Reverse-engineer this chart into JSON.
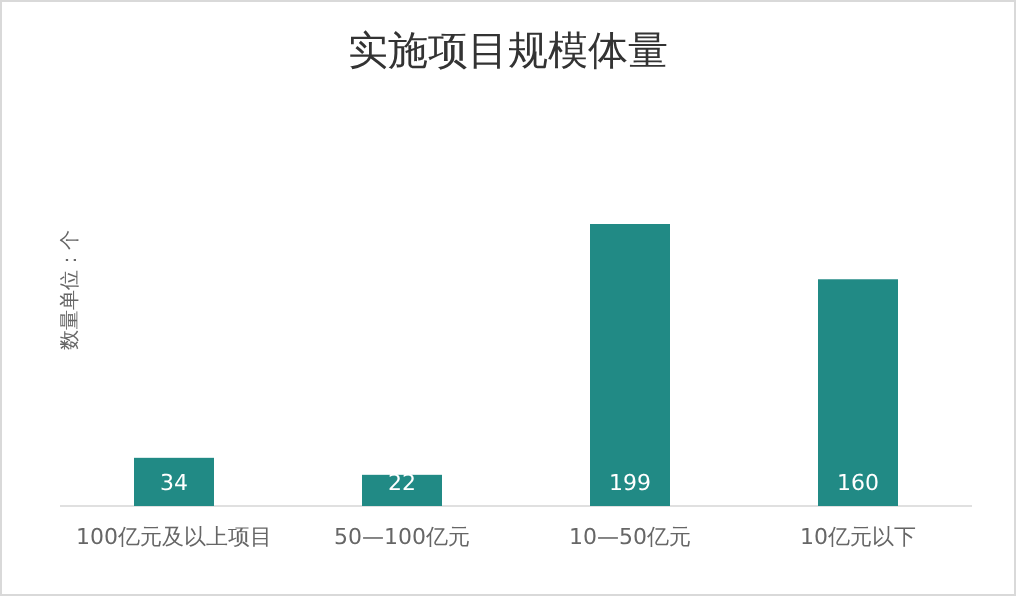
{
  "chart_data": {
    "type": "bar",
    "title": "实施项目规模体量",
    "ylabel": "数量单位：个",
    "categories": [
      "100亿元及以上项目",
      "50—100亿元",
      "10—50亿元",
      "10亿元以下"
    ],
    "values": [
      34,
      22,
      199,
      160
    ],
    "color": "#218a85",
    "data_labels": true
  }
}
